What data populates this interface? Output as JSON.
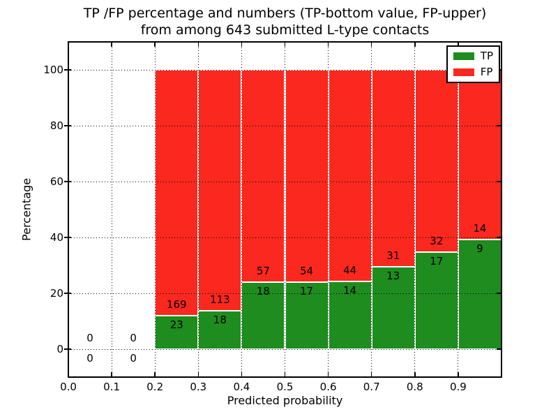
{
  "chart_data": {
    "type": "bar",
    "stacked": true,
    "title_lines": [
      "TP /FP percentage and numbers (TP-bottom value, FP-upper)",
      "from among 643 submitted L-type contacts"
    ],
    "xlabel": "Predicted probability",
    "ylabel": "Percentage",
    "xlim": [
      0.0,
      1.0
    ],
    "ylim": [
      -10,
      110
    ],
    "xticks": [
      0.0,
      0.1,
      0.2,
      0.3,
      0.4,
      0.5,
      0.6,
      0.7,
      0.8,
      0.9
    ],
    "xtick_labels": [
      "0.0",
      "0.1",
      "0.2",
      "0.3",
      "0.4",
      "0.5",
      "0.6",
      "0.7",
      "0.8",
      "0.9"
    ],
    "yticks": [
      0,
      20,
      40,
      60,
      80,
      100
    ],
    "ytick_labels": [
      "0",
      "20",
      "40",
      "60",
      "80",
      "100"
    ],
    "grid": {
      "style": "dotted",
      "color": "#000000",
      "axes": "both",
      "over_bars": true
    },
    "colors": {
      "tp": "#1e8c1e",
      "fp": "#fa281e"
    },
    "legend": {
      "position": "upper right",
      "entries": [
        {
          "label": "TP",
          "color": "#1e8c1e"
        },
        {
          "label": "FP",
          "color": "#fa281e"
        }
      ]
    },
    "bar_semantics": "each bar: green TP% (bottom) + red FP% (top) = 100%; annotations are raw counts, TP below boundary, FP above",
    "bins": [
      {
        "range": [
          0.0,
          0.1
        ],
        "tp": 0,
        "fp": 0
      },
      {
        "range": [
          0.1,
          0.2
        ],
        "tp": 0,
        "fp": 0
      },
      {
        "range": [
          0.2,
          0.3
        ],
        "tp": 23,
        "fp": 169
      },
      {
        "range": [
          0.3,
          0.4
        ],
        "tp": 18,
        "fp": 113
      },
      {
        "range": [
          0.4,
          0.5
        ],
        "tp": 18,
        "fp": 57
      },
      {
        "range": [
          0.5,
          0.6
        ],
        "tp": 17,
        "fp": 54
      },
      {
        "range": [
          0.6,
          0.7
        ],
        "tp": 14,
        "fp": 44
      },
      {
        "range": [
          0.7,
          0.8
        ],
        "tp": 13,
        "fp": 31
      },
      {
        "range": [
          0.8,
          0.9
        ],
        "tp": 17,
        "fp": 32
      },
      {
        "range": [
          0.9,
          1.0
        ],
        "tp": 9,
        "fp": 14
      }
    ]
  }
}
